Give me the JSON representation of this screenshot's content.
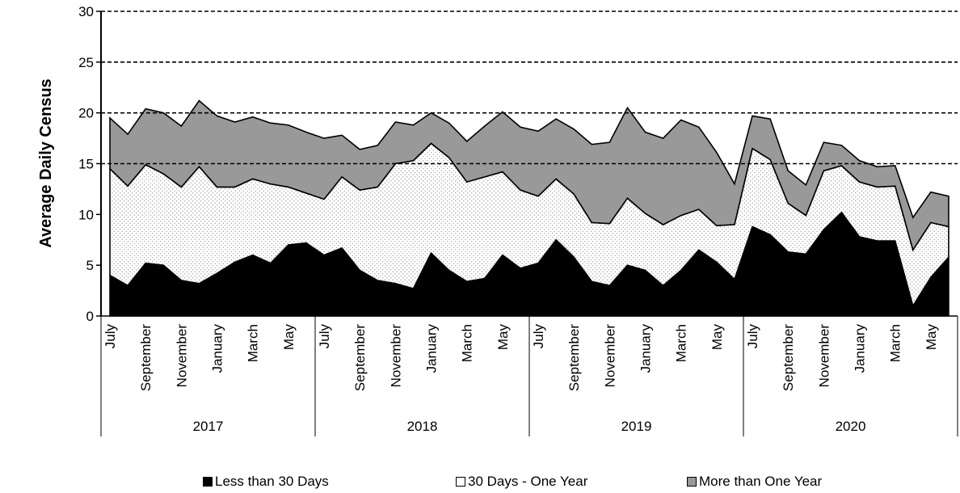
{
  "chart_data": {
    "type": "area",
    "stacked": true,
    "title": "",
    "ylabel": "Average Daily Census",
    "xlabel": "",
    "ylim": [
      0,
      30
    ],
    "yticks": [
      0,
      5,
      10,
      15,
      20,
      25,
      30
    ],
    "gridlines": [
      15,
      20,
      25,
      30
    ],
    "grid_style": "dashed horizontal",
    "legend_position": "bottom",
    "month_tick_labels": [
      "July",
      "September",
      "November",
      "January",
      "March",
      "May"
    ],
    "years": [
      "2017",
      "2018",
      "2019",
      "2020"
    ],
    "x": [
      "Jul 2017",
      "Aug 2017",
      "Sep 2017",
      "Oct 2017",
      "Nov 2017",
      "Dec 2017",
      "Jan 2018",
      "Feb 2018",
      "Mar 2018",
      "Apr 2018",
      "May 2018",
      "Jun 2018",
      "Jul 2018",
      "Aug 2018",
      "Sep 2018",
      "Oct 2018",
      "Nov 2018",
      "Dec 2018",
      "Jan 2019",
      "Feb 2019",
      "Mar 2019",
      "Apr 2019",
      "May 2019",
      "Jun 2019",
      "Jul 2019",
      "Aug 2019",
      "Sep 2019",
      "Oct 2019",
      "Nov 2019",
      "Dec 2019",
      "Jan 2020",
      "Feb 2020",
      "Mar 2020",
      "Apr 2020",
      "May 2020",
      "Jun 2020",
      "Jul 2020",
      "Aug 2020",
      "Sep 2020",
      "Oct 2020",
      "Nov 2020",
      "Dec 2020",
      "Jan 2021",
      "Feb 2021",
      "Mar 2021",
      "Apr 2021",
      "May 2021",
      "Jun 2021"
    ],
    "series": [
      {
        "name": "Less than 30 Days",
        "color": "#000000",
        "values": [
          4.0,
          3.0,
          5.2,
          5.0,
          3.5,
          3.2,
          4.2,
          5.3,
          6.0,
          5.2,
          7.0,
          7.2,
          6.0,
          6.7,
          4.5,
          3.5,
          3.2,
          2.7,
          6.2,
          4.5,
          3.4,
          3.7,
          6.0,
          4.7,
          5.2,
          7.5,
          5.8,
          3.4,
          3.0,
          5.0,
          4.5,
          3.0,
          4.5,
          6.5,
          5.3,
          3.6,
          8.8,
          8.0,
          6.3,
          6.1,
          8.5,
          10.2,
          7.8,
          7.4,
          7.4,
          1.0,
          3.8,
          5.8
        ]
      },
      {
        "name": "30 Days - One Year",
        "color": "#ffffff",
        "values": [
          10.5,
          9.8,
          9.7,
          9.0,
          9.2,
          11.5,
          8.5,
          7.4,
          7.5,
          7.8,
          5.7,
          4.9,
          5.5,
          7.0,
          7.9,
          9.2,
          11.8,
          12.6,
          10.8,
          11.1,
          9.8,
          10.0,
          8.2,
          7.7,
          6.6,
          6.0,
          6.2,
          5.8,
          6.1,
          6.6,
          5.6,
          6.0,
          5.4,
          4.0,
          3.6,
          5.4,
          7.7,
          7.4,
          4.8,
          3.8,
          5.8,
          4.6,
          5.4,
          5.3,
          5.4,
          5.5,
          5.4,
          3.0
        ]
      },
      {
        "name": "More than One Year",
        "color": "#999999",
        "values": [
          5.0,
          5.1,
          5.5,
          6.0,
          6.0,
          6.5,
          7.0,
          6.4,
          6.1,
          6.0,
          6.1,
          6.0,
          6.0,
          4.1,
          4.0,
          4.1,
          4.1,
          3.5,
          3.0,
          3.4,
          4.0,
          5.0,
          5.9,
          6.2,
          6.4,
          5.9,
          6.4,
          7.7,
          8.0,
          8.9,
          8.0,
          8.5,
          9.4,
          8.1,
          7.2,
          4.0,
          3.2,
          4.0,
          3.2,
          3.0,
          2.8,
          2.0,
          2.1,
          2.0,
          2.0,
          3.2,
          3.0,
          3.0
        ]
      }
    ]
  }
}
